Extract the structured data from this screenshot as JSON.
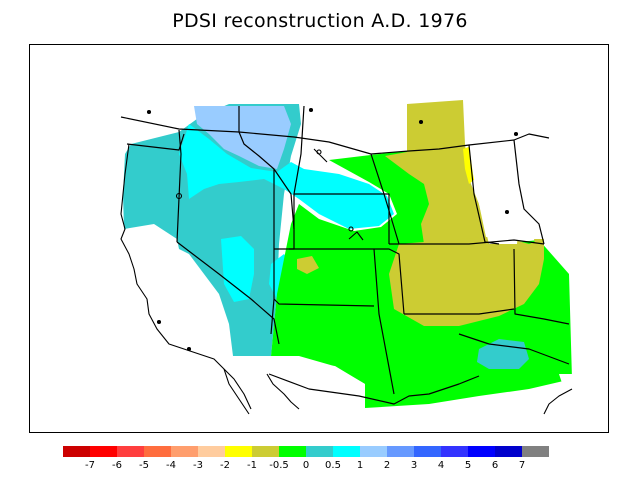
{
  "title": "PDSI reconstruction A.D. 1976",
  "colors": {
    "background": "#ffffff",
    "border": "#000000",
    "boundary": "#000000"
  },
  "legend": {
    "bins": [
      {
        "color": "#cc0000"
      },
      {
        "color": "#ff0000"
      },
      {
        "color": "#ff3e3e"
      },
      {
        "color": "#ff6d3e"
      },
      {
        "color": "#ff9e6d"
      },
      {
        "color": "#ffcc9e"
      },
      {
        "color": "#ffff00"
      },
      {
        "color": "#cccc33"
      },
      {
        "color": "#00ff00"
      },
      {
        "color": "#33cccc"
      },
      {
        "color": "#00ffff"
      },
      {
        "color": "#99ccff"
      },
      {
        "color": "#6699ff"
      },
      {
        "color": "#3366ff"
      },
      {
        "color": "#3333ff"
      },
      {
        "color": "#0000ff"
      },
      {
        "color": "#0000cc"
      },
      {
        "color": "#808080"
      }
    ],
    "ticks": [
      "-7",
      "-6",
      "-5",
      "-4",
      "-3",
      "-2",
      "-1",
      "-0.5",
      "0",
      "0.5",
      "1",
      "2",
      "3",
      "4",
      "5",
      "6",
      "7"
    ]
  }
}
